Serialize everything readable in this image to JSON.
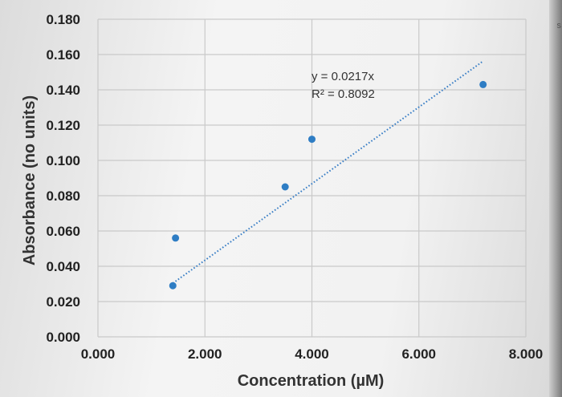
{
  "chart_data": {
    "type": "scatter",
    "title": "",
    "xlabel": "Concentration (µM)",
    "ylabel": "Absorbance (no units)",
    "xlim": [
      0,
      8
    ],
    "ylim": [
      0,
      0.18
    ],
    "x_ticks": [
      "0.000",
      "2.000",
      "4.000",
      "6.000",
      "8.000"
    ],
    "y_ticks": [
      "0.000",
      "0.020",
      "0.040",
      "0.060",
      "0.080",
      "0.100",
      "0.120",
      "0.140",
      "0.160",
      "0.180"
    ],
    "series": [
      {
        "values": [
          {
            "x": 1.4,
            "y": 0.029
          },
          {
            "x": 1.45,
            "y": 0.056
          },
          {
            "x": 3.5,
            "y": 0.085
          },
          {
            "x": 4.0,
            "y": 0.112
          },
          {
            "x": 7.2,
            "y": 0.143
          }
        ]
      }
    ],
    "trendline": {
      "type": "linear",
      "slope": 0.0217,
      "x_range": [
        1.4,
        7.2
      ],
      "equation": "y = 0.0217x",
      "r_squared": "R² = 0.8092"
    },
    "grid": true,
    "legend": "none",
    "colors": {
      "marker": "#2e7dc4",
      "trendline": "#3a7fc6",
      "grid": "#c9c9c9"
    }
  },
  "edge_fragment": "s"
}
